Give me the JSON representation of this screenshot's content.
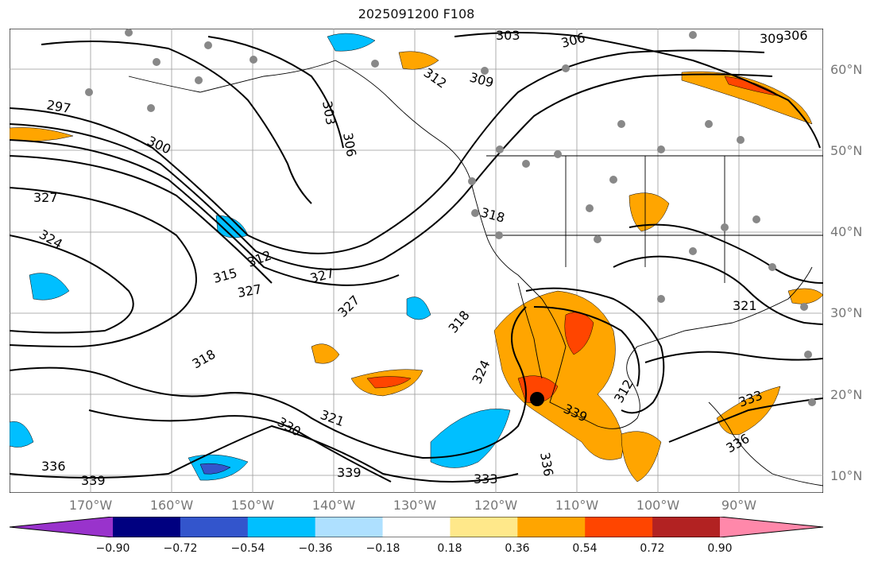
{
  "title": "2025091200 F108",
  "map": {
    "lon_range": [
      -180,
      -80
    ],
    "lat_range": [
      7,
      64
    ],
    "lon_ticks": [
      "170°W",
      "160°W",
      "150°W",
      "140°W",
      "130°W",
      "120°W",
      "110°W",
      "100°W",
      "90°W"
    ],
    "lat_ticks": [
      "60°N",
      "50°N",
      "40°N",
      "30°N",
      "20°N",
      "10°N"
    ],
    "contour_labels": [
      "303",
      "306",
      "309",
      "312",
      "297",
      "300",
      "303",
      "306",
      "327",
      "324",
      "318",
      "315",
      "312",
      "327",
      "327",
      "327",
      "318",
      "318",
      "321",
      "324",
      "330",
      "321",
      "336",
      "339",
      "339",
      "333",
      "336",
      "339",
      "312",
      "333",
      "336",
      "309",
      "306"
    ],
    "storm_marker": "black-dot"
  },
  "colorbar": {
    "ticks": [
      "−0.90",
      "−0.72",
      "−0.54",
      "−0.36",
      "−0.18",
      "0.18",
      "0.36",
      "0.54",
      "0.72",
      "0.90"
    ],
    "colors": [
      "#9933cc",
      "#000080",
      "#3355cc",
      "#00bfff",
      "#aee0ff",
      "#ffffff",
      "#ffe88a",
      "#ffa500",
      "#ff4500",
      "#b22222",
      "#ff88aa"
    ]
  }
}
